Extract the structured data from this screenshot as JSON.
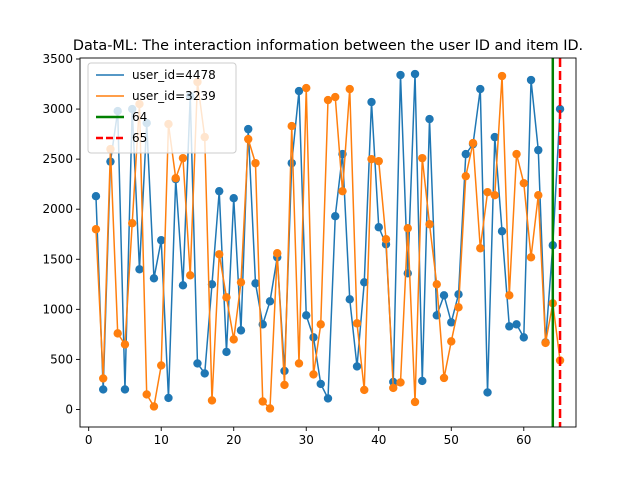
{
  "chart_data": {
    "type": "line",
    "title": "Data-ML: The interaction information between the user ID and item ID.",
    "xlabel": "",
    "ylabel": "",
    "xlim": [
      -1.2,
      67.2
    ],
    "ylim": [
      -175,
      3510
    ],
    "xticks": [
      0,
      10,
      20,
      30,
      40,
      50,
      60
    ],
    "yticks": [
      0,
      500,
      1000,
      1500,
      2000,
      2500,
      3000,
      3500
    ],
    "grid": false,
    "legend_position": "top-left",
    "series": [
      {
        "name": "user_id=4478",
        "color": "#1f77b4",
        "x": [
          1,
          2,
          3,
          4,
          5,
          6,
          7,
          8,
          9,
          10,
          11,
          12,
          13,
          14,
          15,
          16,
          17,
          18,
          19,
          20,
          21,
          22,
          23,
          24,
          25,
          26,
          27,
          28,
          29,
          30,
          31,
          32,
          33,
          34,
          35,
          36,
          37,
          38,
          39,
          40,
          41,
          42,
          43,
          44,
          45,
          46,
          47,
          48,
          49,
          50,
          51,
          52,
          53,
          54,
          55,
          56,
          57,
          58,
          59,
          60,
          61,
          62,
          63,
          64,
          65
        ],
        "values": [
          2130,
          200,
          2475,
          2980,
          200,
          3000,
          1400,
          2860,
          1310,
          1690,
          115,
          2300,
          1240,
          3130,
          460,
          360,
          1250,
          2180,
          575,
          2110,
          790,
          2800,
          1260,
          850,
          1080,
          1520,
          385,
          2460,
          3180,
          940,
          720,
          255,
          110,
          1930,
          2550,
          1100,
          430,
          1270,
          3070,
          1820,
          1650,
          275,
          3340,
          1360,
          3350,
          285,
          2900,
          940,
          1140,
          870,
          1150,
          2550,
          2650,
          3200,
          170,
          2720,
          1780,
          830,
          850,
          720,
          3290,
          2590,
          670,
          1640,
          3000
        ]
      },
      {
        "name": "user_id=3239",
        "color": "#ff7f0e",
        "x": [
          1,
          2,
          3,
          4,
          5,
          6,
          7,
          8,
          9,
          10,
          11,
          12,
          13,
          14,
          15,
          16,
          17,
          18,
          19,
          20,
          21,
          22,
          23,
          24,
          25,
          26,
          27,
          28,
          29,
          30,
          31,
          32,
          33,
          34,
          35,
          36,
          37,
          38,
          39,
          40,
          41,
          42,
          43,
          44,
          45,
          46,
          47,
          48,
          49,
          50,
          51,
          52,
          53,
          54,
          55,
          56,
          57,
          58,
          59,
          60,
          61,
          62,
          63,
          64,
          65
        ],
        "values": [
          1800,
          310,
          2600,
          760,
          650,
          1860,
          3050,
          150,
          30,
          440,
          2850,
          2310,
          2510,
          1340,
          3270,
          2720,
          90,
          1550,
          1120,
          700,
          1270,
          2700,
          2460,
          80,
          10,
          1560,
          245,
          2830,
          460,
          3210,
          350,
          850,
          3090,
          3120,
          2180,
          3200,
          860,
          195,
          2500,
          2480,
          1700,
          215,
          270,
          1810,
          75,
          2510,
          1850,
          1250,
          315,
          680,
          1020,
          2330,
          2660,
          1610,
          2170,
          2140,
          3330,
          1140,
          2550,
          2260,
          1520,
          2140,
          665,
          1060,
          490
        ]
      },
      {
        "name": "64",
        "color": "#008000",
        "type": "vline",
        "x": 64,
        "style": "solid"
      },
      {
        "name": "65",
        "color": "#ff0000",
        "type": "vline",
        "x": 65,
        "style": "dashed"
      }
    ]
  }
}
